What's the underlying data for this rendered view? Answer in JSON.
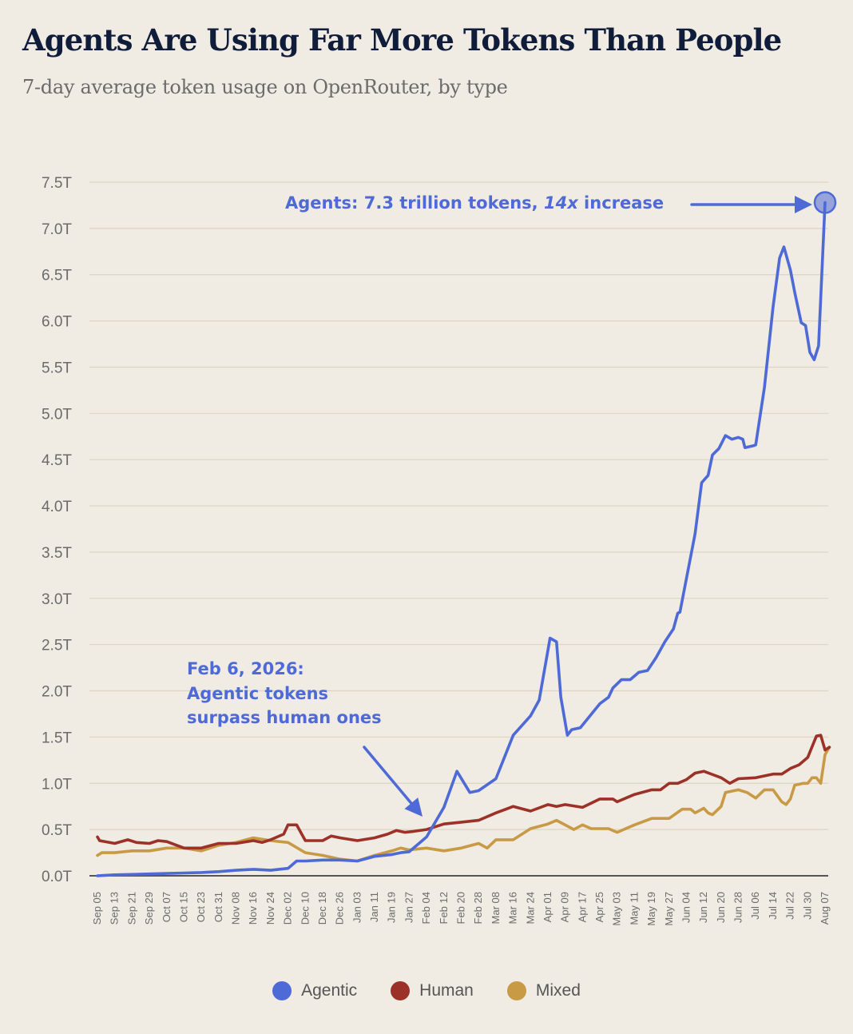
{
  "title": "Agents Are Using Far More Tokens Than People",
  "subtitle": "7-day average token usage on OpenRouter, by type",
  "annotations": {
    "peak_prefix": "Agents: 7.3 trillion tokens, ",
    "peak_emph": "14x",
    "peak_suffix": " increase",
    "cross_line1": "Feb 6, 2026:",
    "cross_line2": "Agentic tokens",
    "cross_line3": "surpass human ones"
  },
  "legend": {
    "agentic": "Agentic",
    "human": "Human",
    "mixed": "Mixed"
  },
  "colors": {
    "agentic": "#4d6ad6",
    "human": "#9c3128",
    "mixed": "#c99a45",
    "grid": "#ddd6c5",
    "baseline": "#555555"
  },
  "chart_data": {
    "type": "line",
    "title": "Agents Are Using Far More Tokens Than People",
    "subtitle": "7-day average token usage on OpenRouter, by type",
    "x_tick_labels": [
      "Sep 05",
      "Sep 13",
      "Sep 21",
      "Sep 29",
      "Oct 07",
      "Oct 15",
      "Oct 23",
      "Oct 31",
      "Nov 08",
      "Nov 16",
      "Nov 24",
      "Dec 02",
      "Dec 10",
      "Dec 18",
      "Dec 26",
      "Jan 03",
      "Jan 11",
      "Jan 19",
      "Jan 27",
      "Feb 04",
      "Feb 12",
      "Feb 20",
      "Feb 28",
      "Mar 08",
      "Mar 16",
      "Mar 24",
      "Apr 01",
      "Apr 09",
      "Apr 17",
      "Apr 25",
      "May 03",
      "May 11",
      "May 19",
      "May 27",
      "Jun 04",
      "Jun 12",
      "Jun 20",
      "Jun 28",
      "Jul 06",
      "Jul 14",
      "Jul 22",
      "Jul 30",
      "Aug 07"
    ],
    "y_ticks": [
      0,
      0.5,
      1.0,
      1.5,
      2.0,
      2.5,
      3.0,
      3.5,
      4.0,
      4.5,
      5.0,
      5.5,
      6.0,
      6.5,
      7.0,
      7.5
    ],
    "y_tick_labels": [
      "0.0T",
      "0.5T",
      "1.0T",
      "1.5T",
      "2.0T",
      "2.5T",
      "3.0T",
      "3.5T",
      "4.0T",
      "4.5T",
      "5.0T",
      "5.5T",
      "6.0T",
      "6.5T",
      "7.0T",
      "7.5T"
    ],
    "ylim": [
      0,
      7.5
    ],
    "grid": true,
    "legend_position": "bottom",
    "series": [
      {
        "name": "Agentic",
        "points": [
          [
            "Sep 05",
            0.0
          ],
          [
            "Sep 13",
            0.01
          ],
          [
            "Sep 21",
            0.015
          ],
          [
            "Sep 29",
            0.02
          ],
          [
            "Oct 07",
            0.025
          ],
          [
            "Oct 15",
            0.03
          ],
          [
            "Oct 23",
            0.035
          ],
          [
            "Oct 31",
            0.045
          ],
          [
            "Nov 08",
            0.06
          ],
          [
            "Nov 16",
            0.07
          ],
          [
            "Nov 24",
            0.06
          ],
          [
            "Dec 02",
            0.08
          ],
          [
            "Dec 06",
            0.16
          ],
          [
            "Dec 10",
            0.16
          ],
          [
            "Dec 18",
            0.17
          ],
          [
            "Dec 26",
            0.17
          ],
          [
            "Jan 03",
            0.16
          ],
          [
            "Jan 11",
            0.21
          ],
          [
            "Jan 19",
            0.23
          ],
          [
            "Jan 23",
            0.25
          ],
          [
            "Jan 27",
            0.26
          ],
          [
            "Feb 04",
            0.42
          ],
          [
            "Feb 12",
            0.74
          ],
          [
            "Feb 18",
            1.13
          ],
          [
            "Feb 24",
            0.9
          ],
          [
            "Feb 28",
            0.92
          ],
          [
            "Mar 08",
            1.05
          ],
          [
            "Mar 16",
            1.52
          ],
          [
            "Mar 24",
            1.73
          ],
          [
            "Mar 28",
            1.9
          ],
          [
            "Apr 02",
            2.57
          ],
          [
            "Apr 05",
            2.53
          ],
          [
            "Apr 07",
            1.93
          ],
          [
            "Apr 10",
            1.52
          ],
          [
            "Apr 12",
            1.58
          ],
          [
            "Apr 16",
            1.6
          ],
          [
            "Apr 25",
            1.86
          ],
          [
            "Apr 29",
            1.93
          ],
          [
            "May 01",
            2.03
          ],
          [
            "May 05",
            2.12
          ],
          [
            "May 09",
            2.12
          ],
          [
            "May 13",
            2.2
          ],
          [
            "May 17",
            2.22
          ],
          [
            "May 21",
            2.36
          ],
          [
            "May 25",
            2.53
          ],
          [
            "May 29",
            2.67
          ],
          [
            "May 31",
            2.84
          ],
          [
            "Jun 01",
            2.85
          ],
          [
            "Jun 08",
            3.7
          ],
          [
            "Jun 11",
            4.25
          ],
          [
            "Jun 14",
            4.33
          ],
          [
            "Jun 16",
            4.55
          ],
          [
            "Jun 19",
            4.62
          ],
          [
            "Jun 22",
            4.76
          ],
          [
            "Jun 25",
            4.72
          ],
          [
            "Jun 28",
            4.74
          ],
          [
            "Jun 30",
            4.72
          ],
          [
            "Jul 01",
            4.63
          ],
          [
            "Jul 05",
            4.65
          ],
          [
            "Jul 06",
            4.66
          ],
          [
            "Jul 10",
            5.28
          ],
          [
            "Jul 14",
            6.15
          ],
          [
            "Jul 17",
            6.68
          ],
          [
            "Jul 19",
            6.8
          ],
          [
            "Jul 22",
            6.55
          ],
          [
            "Jul 24",
            6.31
          ],
          [
            "Jul 27",
            5.98
          ],
          [
            "Jul 29",
            5.95
          ],
          [
            "Jul 31",
            5.66
          ],
          [
            "Aug 02",
            5.58
          ],
          [
            "Aug 04",
            5.73
          ],
          [
            "Aug 07",
            7.28
          ]
        ]
      },
      {
        "name": "Human",
        "points": [
          [
            "Sep 05",
            0.42
          ],
          [
            "Sep 06",
            0.38
          ],
          [
            "Sep 13",
            0.35
          ],
          [
            "Sep 19",
            0.39
          ],
          [
            "Sep 23",
            0.36
          ],
          [
            "Sep 29",
            0.35
          ],
          [
            "Oct 03",
            0.38
          ],
          [
            "Oct 07",
            0.37
          ],
          [
            "Oct 15",
            0.3
          ],
          [
            "Oct 23",
            0.3
          ],
          [
            "Oct 31",
            0.35
          ],
          [
            "Nov 08",
            0.35
          ],
          [
            "Nov 16",
            0.38
          ],
          [
            "Nov 20",
            0.36
          ],
          [
            "Nov 24",
            0.39
          ],
          [
            "Nov 30",
            0.45
          ],
          [
            "Dec 02",
            0.55
          ],
          [
            "Dec 06",
            0.55
          ],
          [
            "Dec 10",
            0.38
          ],
          [
            "Dec 18",
            0.38
          ],
          [
            "Dec 22",
            0.43
          ],
          [
            "Dec 26",
            0.41
          ],
          [
            "Jan 03",
            0.38
          ],
          [
            "Jan 11",
            0.41
          ],
          [
            "Jan 17",
            0.45
          ],
          [
            "Jan 21",
            0.49
          ],
          [
            "Jan 25",
            0.47
          ],
          [
            "Jan 29",
            0.48
          ],
          [
            "Feb 04",
            0.5
          ],
          [
            "Feb 12",
            0.56
          ],
          [
            "Feb 20",
            0.58
          ],
          [
            "Feb 28",
            0.6
          ],
          [
            "Mar 08",
            0.68
          ],
          [
            "Mar 16",
            0.75
          ],
          [
            "Mar 24",
            0.7
          ],
          [
            "Apr 01",
            0.77
          ],
          [
            "Apr 05",
            0.75
          ],
          [
            "Apr 09",
            0.77
          ],
          [
            "Apr 17",
            0.74
          ],
          [
            "Apr 25",
            0.83
          ],
          [
            "May 01",
            0.83
          ],
          [
            "May 03",
            0.8
          ],
          [
            "May 11",
            0.88
          ],
          [
            "May 19",
            0.93
          ],
          [
            "May 23",
            0.93
          ],
          [
            "May 27",
            1.0
          ],
          [
            "May 31",
            1.0
          ],
          [
            "Jun 04",
            1.04
          ],
          [
            "Jun 08",
            1.11
          ],
          [
            "Jun 12",
            1.13
          ],
          [
            "Jun 20",
            1.06
          ],
          [
            "Jun 24",
            1.0
          ],
          [
            "Jun 28",
            1.05
          ],
          [
            "Jul 06",
            1.06
          ],
          [
            "Jul 14",
            1.1
          ],
          [
            "Jul 18",
            1.1
          ],
          [
            "Jul 22",
            1.16
          ],
          [
            "Jul 26",
            1.2
          ],
          [
            "Jul 30",
            1.28
          ],
          [
            "Aug 03",
            1.51
          ],
          [
            "Aug 05",
            1.52
          ],
          [
            "Aug 07",
            1.36
          ],
          [
            "Aug 09",
            1.39
          ]
        ]
      },
      {
        "name": "Mixed",
        "points": [
          [
            "Sep 05",
            0.22
          ],
          [
            "Sep 07",
            0.25
          ],
          [
            "Sep 13",
            0.25
          ],
          [
            "Sep 21",
            0.27
          ],
          [
            "Sep 29",
            0.27
          ],
          [
            "Oct 07",
            0.3
          ],
          [
            "Oct 15",
            0.3
          ],
          [
            "Oct 23",
            0.27
          ],
          [
            "Oct 31",
            0.33
          ],
          [
            "Nov 08",
            0.36
          ],
          [
            "Nov 16",
            0.41
          ],
          [
            "Nov 24",
            0.38
          ],
          [
            "Dec 02",
            0.36
          ],
          [
            "Dec 10",
            0.25
          ],
          [
            "Dec 18",
            0.22
          ],
          [
            "Dec 26",
            0.18
          ],
          [
            "Jan 03",
            0.16
          ],
          [
            "Jan 11",
            0.22
          ],
          [
            "Jan 19",
            0.27
          ],
          [
            "Jan 23",
            0.3
          ],
          [
            "Jan 27",
            0.28
          ],
          [
            "Feb 04",
            0.3
          ],
          [
            "Feb 12",
            0.27
          ],
          [
            "Feb 20",
            0.3
          ],
          [
            "Feb 28",
            0.35
          ],
          [
            "Mar 04",
            0.3
          ],
          [
            "Mar 08",
            0.39
          ],
          [
            "Mar 16",
            0.39
          ],
          [
            "Mar 24",
            0.51
          ],
          [
            "Apr 01",
            0.56
          ],
          [
            "Apr 05",
            0.6
          ],
          [
            "Apr 09",
            0.55
          ],
          [
            "Apr 13",
            0.5
          ],
          [
            "Apr 17",
            0.55
          ],
          [
            "Apr 21",
            0.51
          ],
          [
            "Apr 29",
            0.51
          ],
          [
            "May 03",
            0.47
          ],
          [
            "May 11",
            0.55
          ],
          [
            "May 19",
            0.62
          ],
          [
            "May 27",
            0.62
          ],
          [
            "Jun 02",
            0.72
          ],
          [
            "Jun 06",
            0.72
          ],
          [
            "Jun 08",
            0.68
          ],
          [
            "Jun 12",
            0.73
          ],
          [
            "Jun 14",
            0.68
          ],
          [
            "Jun 16",
            0.66
          ],
          [
            "Jun 20",
            0.75
          ],
          [
            "Jun 22",
            0.9
          ],
          [
            "Jun 28",
            0.93
          ],
          [
            "Jul 02",
            0.9
          ],
          [
            "Jul 06",
            0.84
          ],
          [
            "Jul 10",
            0.93
          ],
          [
            "Jul 14",
            0.93
          ],
          [
            "Jul 18",
            0.8
          ],
          [
            "Jul 20",
            0.77
          ],
          [
            "Jul 22",
            0.83
          ],
          [
            "Jul 24",
            0.98
          ],
          [
            "Jul 28",
            1.0
          ],
          [
            "Jul 30",
            1.0
          ],
          [
            "Aug 01",
            1.06
          ],
          [
            "Aug 03",
            1.06
          ],
          [
            "Aug 05",
            1.0
          ],
          [
            "Aug 07",
            1.31
          ],
          [
            "Aug 09",
            1.39
          ]
        ]
      }
    ],
    "annotations": [
      "Agents: 7.3 trillion tokens, 14x increase",
      "Feb 6, 2026: Agentic tokens surpass human ones"
    ]
  }
}
